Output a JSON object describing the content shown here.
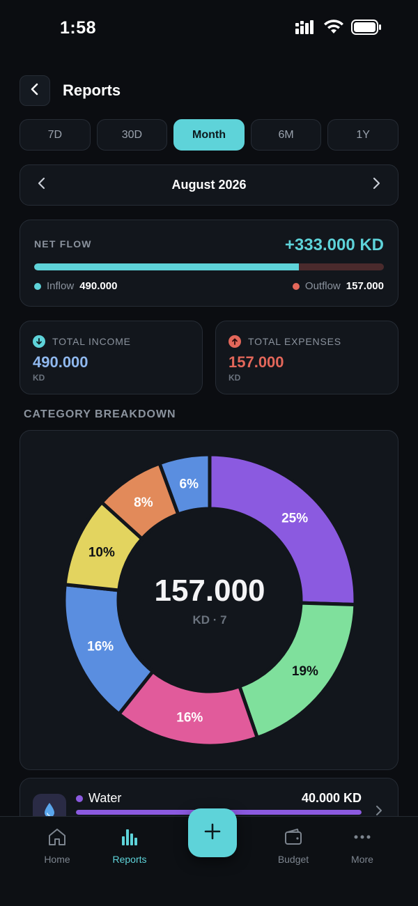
{
  "status_bar": {
    "time": "1:58"
  },
  "header": {
    "title": "Reports"
  },
  "period_tabs": [
    {
      "label": "7D",
      "active": false
    },
    {
      "label": "30D",
      "active": false
    },
    {
      "label": "Month",
      "active": true
    },
    {
      "label": "6M",
      "active": false
    },
    {
      "label": "1Y",
      "active": false
    }
  ],
  "month_nav": {
    "label": "August 2026"
  },
  "net_flow": {
    "label": "NET FLOW",
    "value": "+333.000 KD",
    "inflow_fraction": 0.757,
    "inflow_label": "Inflow",
    "inflow_value": "490.000",
    "outflow_label": "Outflow",
    "outflow_value": "157.000"
  },
  "total_income": {
    "label": "TOTAL INCOME",
    "value": "490.000",
    "unit": "KD"
  },
  "total_expenses": {
    "label": "TOTAL EXPENSES",
    "value": "157.000",
    "unit": "KD"
  },
  "category_breakdown": {
    "title": "CATEGORY BREAKDOWN",
    "center_value": "157.000",
    "center_sub": "KD · 7"
  },
  "chart_data": {
    "type": "pie",
    "segments": [
      {
        "label": "25%",
        "percent": 25.5,
        "color": "#8b5ae0",
        "label_color": "#ffffff"
      },
      {
        "label": "19%",
        "percent": 19.2,
        "color": "#7fe09c",
        "label_color": "#0d1014"
      },
      {
        "label": "16%",
        "percent": 16.0,
        "color": "#e15b9b",
        "label_color": "#ffffff"
      },
      {
        "label": "16%",
        "percent": 16.0,
        "color": "#5a8ee0",
        "label_color": "#ffffff"
      },
      {
        "label": "10%",
        "percent": 10.0,
        "color": "#e3d45f",
        "label_color": "#0d1014"
      },
      {
        "label": "8%",
        "percent": 7.7,
        "color": "#e28a5a",
        "label_color": "#ffffff"
      },
      {
        "label": "6%",
        "percent": 5.6,
        "color": "#5a8ee0",
        "label_color": "#ffffff"
      }
    ]
  },
  "category_item": {
    "icon": "water-drop-icon",
    "name": "Water",
    "color": "#8b5ae0",
    "amount": "40.000 KD",
    "fraction": 1.0
  },
  "bottom_nav": {
    "items": [
      {
        "label": "Home",
        "icon": "home-icon",
        "active": false
      },
      {
        "label": "Reports",
        "icon": "bar-chart-icon",
        "active": true
      },
      {
        "label": "Budget",
        "icon": "wallet-icon",
        "active": false
      },
      {
        "label": "More",
        "icon": "more-icon",
        "active": false
      }
    ]
  },
  "colors": {
    "accent": "#5ed3d9",
    "income": "#8fb8ee",
    "expense": "#e3675a",
    "background": "#0b0d11",
    "card": "#12161c"
  }
}
